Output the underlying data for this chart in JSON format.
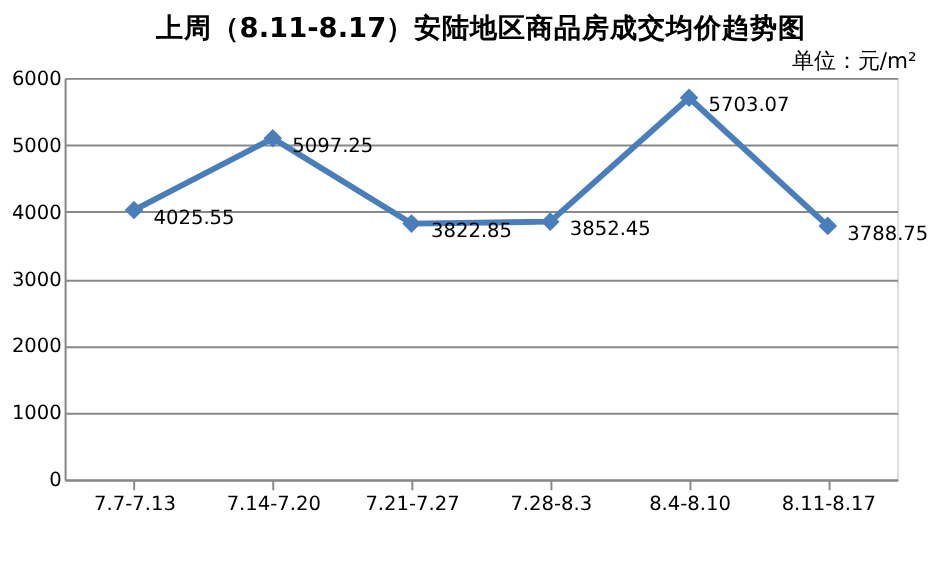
{
  "chart_data": {
    "type": "line",
    "title": "上周（8.11-8.17）安陆地区商品房成交均价趋势图",
    "categories": [
      "7.7-7.13",
      "7.14-7.20",
      "7.21-7.27",
      "7.28-8.3",
      "8.4-8.10",
      "8.11-8.17"
    ],
    "series": [
      {
        "color": "#4a7ebb",
        "values": [
          4025.55,
          5097.25,
          3822.85,
          3852.45,
          5703.07,
          3788.75
        ]
      }
    ],
    "ylim": [
      0,
      6000
    ],
    "yticks": [
      0,
      1000,
      2000,
      3000,
      4000,
      5000,
      6000
    ],
    "grid": "y",
    "marker": "diamond",
    "data_labels": true,
    "legend": false,
    "annotations": [
      "单位：元/m²"
    ]
  }
}
